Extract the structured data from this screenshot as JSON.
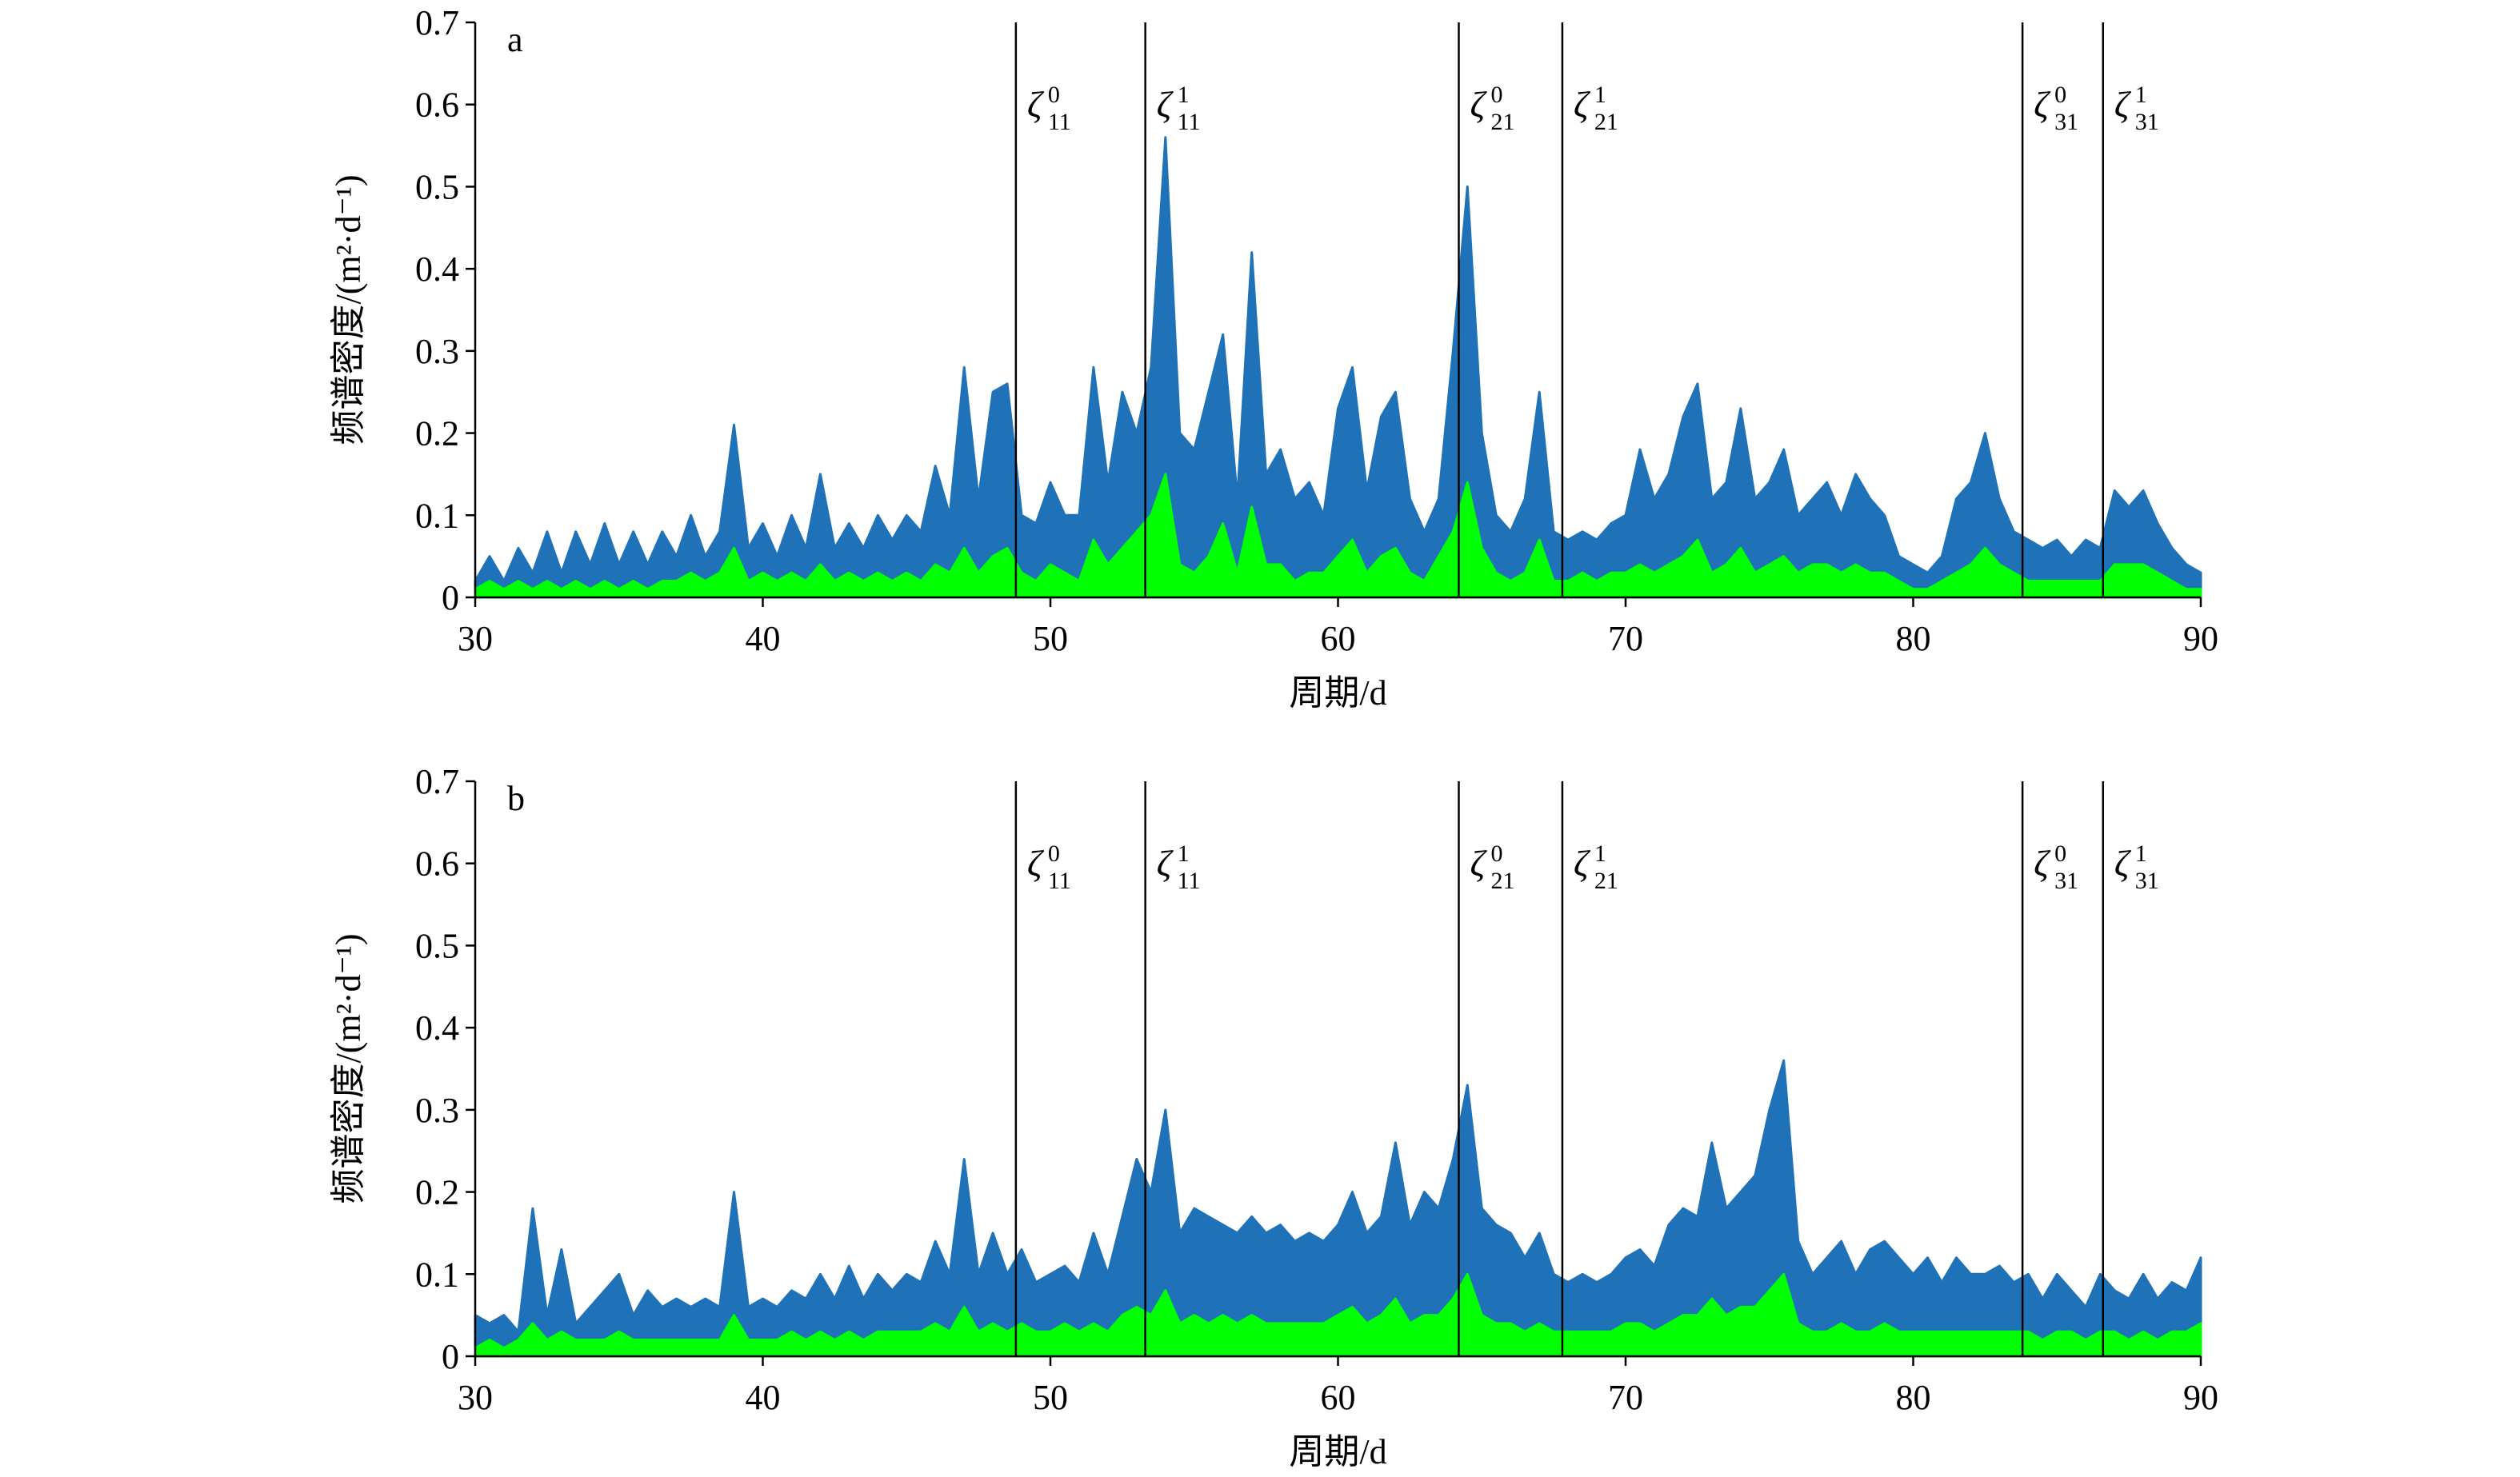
{
  "chart_data": [
    {
      "type": "area",
      "panel_label": "a",
      "xlabel": "周期/d",
      "ylabel": "频谱密度/(m²·d⁻¹)",
      "xlim": [
        30,
        90
      ],
      "xticks": [
        30,
        40,
        50,
        60,
        70,
        80,
        90
      ],
      "ylim": [
        0,
        0.7
      ],
      "yticks": [
        0,
        0.1,
        0.2,
        0.3,
        0.4,
        0.5,
        0.6,
        0.7
      ],
      "x": [
        30,
        30.5,
        31,
        31.5,
        32,
        32.5,
        33,
        33.5,
        34,
        34.5,
        35,
        35.5,
        36,
        36.5,
        37,
        37.5,
        38,
        38.5,
        39,
        39.5,
        40,
        40.5,
        41,
        41.5,
        42,
        42.5,
        43,
        43.5,
        44,
        44.5,
        45,
        45.5,
        46,
        46.5,
        47,
        47.5,
        48,
        48.5,
        49,
        49.5,
        50,
        50.5,
        51,
        51.5,
        52,
        52.5,
        53,
        53.5,
        54,
        54.5,
        55,
        55.5,
        56,
        56.5,
        57,
        57.5,
        58,
        58.5,
        59,
        59.5,
        60,
        60.5,
        61,
        61.5,
        62,
        62.5,
        63,
        63.5,
        64,
        64.5,
        65,
        65.5,
        66,
        66.5,
        67,
        67.5,
        68,
        68.5,
        69,
        69.5,
        70,
        70.5,
        71,
        71.5,
        72,
        72.5,
        73,
        73.5,
        74,
        74.5,
        75,
        75.5,
        76,
        76.5,
        77,
        77.5,
        78,
        78.5,
        79,
        79.5,
        80,
        80.5,
        81,
        81.5,
        82,
        82.5,
        83,
        83.5,
        84,
        84.5,
        85,
        85.5,
        86,
        86.5,
        87,
        87.5,
        88,
        88.5,
        89,
        89.5,
        90
      ],
      "series": [
        {
          "color": "#1f72b8",
          "values": [
            0.02,
            0.05,
            0.02,
            0.06,
            0.03,
            0.08,
            0.03,
            0.08,
            0.04,
            0.09,
            0.04,
            0.08,
            0.04,
            0.08,
            0.05,
            0.1,
            0.05,
            0.08,
            0.21,
            0.06,
            0.09,
            0.05,
            0.1,
            0.06,
            0.15,
            0.06,
            0.09,
            0.06,
            0.1,
            0.07,
            0.1,
            0.08,
            0.16,
            0.1,
            0.28,
            0.12,
            0.25,
            0.26,
            0.1,
            0.09,
            0.14,
            0.1,
            0.1,
            0.28,
            0.14,
            0.25,
            0.2,
            0.28,
            0.56,
            0.2,
            0.18,
            0.25,
            0.32,
            0.12,
            0.42,
            0.15,
            0.18,
            0.12,
            0.14,
            0.1,
            0.23,
            0.28,
            0.13,
            0.22,
            0.25,
            0.12,
            0.08,
            0.12,
            0.3,
            0.5,
            0.2,
            0.1,
            0.08,
            0.12,
            0.25,
            0.08,
            0.07,
            0.08,
            0.07,
            0.09,
            0.1,
            0.18,
            0.12,
            0.15,
            0.22,
            0.26,
            0.12,
            0.14,
            0.23,
            0.12,
            0.14,
            0.18,
            0.1,
            0.12,
            0.14,
            0.1,
            0.15,
            0.12,
            0.1,
            0.05,
            0.04,
            0.03,
            0.05,
            0.12,
            0.14,
            0.2,
            0.12,
            0.08,
            0.07,
            0.06,
            0.07,
            0.05,
            0.07,
            0.06,
            0.13,
            0.11,
            0.13,
            0.09,
            0.06,
            0.04,
            0.03
          ]
        },
        {
          "color": "#00ff00",
          "values": [
            0.01,
            0.02,
            0.01,
            0.02,
            0.01,
            0.02,
            0.01,
            0.02,
            0.01,
            0.02,
            0.01,
            0.02,
            0.01,
            0.02,
            0.02,
            0.03,
            0.02,
            0.03,
            0.06,
            0.02,
            0.03,
            0.02,
            0.03,
            0.02,
            0.04,
            0.02,
            0.03,
            0.02,
            0.03,
            0.02,
            0.03,
            0.02,
            0.04,
            0.03,
            0.06,
            0.03,
            0.05,
            0.06,
            0.03,
            0.02,
            0.04,
            0.03,
            0.02,
            0.07,
            0.04,
            0.06,
            0.08,
            0.1,
            0.15,
            0.04,
            0.03,
            0.05,
            0.09,
            0.03,
            0.11,
            0.04,
            0.04,
            0.02,
            0.03,
            0.03,
            0.05,
            0.07,
            0.03,
            0.05,
            0.06,
            0.03,
            0.02,
            0.05,
            0.08,
            0.14,
            0.06,
            0.03,
            0.02,
            0.03,
            0.07,
            0.02,
            0.02,
            0.03,
            0.02,
            0.03,
            0.03,
            0.04,
            0.03,
            0.04,
            0.05,
            0.07,
            0.03,
            0.04,
            0.06,
            0.03,
            0.04,
            0.05,
            0.03,
            0.04,
            0.04,
            0.03,
            0.04,
            0.03,
            0.03,
            0.02,
            0.01,
            0.01,
            0.02,
            0.03,
            0.04,
            0.06,
            0.04,
            0.03,
            0.02,
            0.02,
            0.02,
            0.02,
            0.02,
            0.02,
            0.04,
            0.04,
            0.04,
            0.03,
            0.02,
            0.01,
            0.01
          ]
        }
      ],
      "annotations": [
        {
          "x": 48.8,
          "base": "ζ",
          "sup": "0",
          "sub": "11"
        },
        {
          "x": 53.3,
          "base": "ζ",
          "sup": "1",
          "sub": "11"
        },
        {
          "x": 64.2,
          "base": "ζ",
          "sup": "0",
          "sub": "21"
        },
        {
          "x": 67.8,
          "base": "ζ",
          "sup": "1",
          "sub": "21"
        },
        {
          "x": 83.8,
          "base": "ζ",
          "sup": "0",
          "sub": "31"
        },
        {
          "x": 86.6,
          "base": "ζ",
          "sup": "1",
          "sub": "31"
        }
      ]
    },
    {
      "type": "area",
      "panel_label": "b",
      "xlabel": "周期/d",
      "ylabel": "频谱密度/(m²·d⁻¹)",
      "xlim": [
        30,
        90
      ],
      "xticks": [
        30,
        40,
        50,
        60,
        70,
        80,
        90
      ],
      "ylim": [
        0,
        0.7
      ],
      "yticks": [
        0,
        0.1,
        0.2,
        0.3,
        0.4,
        0.5,
        0.6,
        0.7
      ],
      "x": [
        30,
        30.5,
        31,
        31.5,
        32,
        32.5,
        33,
        33.5,
        34,
        34.5,
        35,
        35.5,
        36,
        36.5,
        37,
        37.5,
        38,
        38.5,
        39,
        39.5,
        40,
        40.5,
        41,
        41.5,
        42,
        42.5,
        43,
        43.5,
        44,
        44.5,
        45,
        45.5,
        46,
        46.5,
        47,
        47.5,
        48,
        48.5,
        49,
        49.5,
        50,
        50.5,
        51,
        51.5,
        52,
        52.5,
        53,
        53.5,
        54,
        54.5,
        55,
        55.5,
        56,
        56.5,
        57,
        57.5,
        58,
        58.5,
        59,
        59.5,
        60,
        60.5,
        61,
        61.5,
        62,
        62.5,
        63,
        63.5,
        64,
        64.5,
        65,
        65.5,
        66,
        66.5,
        67,
        67.5,
        68,
        68.5,
        69,
        69.5,
        70,
        70.5,
        71,
        71.5,
        72,
        72.5,
        73,
        73.5,
        74,
        74.5,
        75,
        75.5,
        76,
        76.5,
        77,
        77.5,
        78,
        78.5,
        79,
        79.5,
        80,
        80.5,
        81,
        81.5,
        82,
        82.5,
        83,
        83.5,
        84,
        84.5,
        85,
        85.5,
        86,
        86.5,
        87,
        87.5,
        88,
        88.5,
        89,
        89.5,
        90
      ],
      "series": [
        {
          "color": "#1f72b8",
          "values": [
            0.05,
            0.04,
            0.05,
            0.03,
            0.18,
            0.05,
            0.13,
            0.04,
            0.06,
            0.08,
            0.1,
            0.05,
            0.08,
            0.06,
            0.07,
            0.06,
            0.07,
            0.06,
            0.2,
            0.06,
            0.07,
            0.06,
            0.08,
            0.07,
            0.1,
            0.07,
            0.11,
            0.07,
            0.1,
            0.08,
            0.1,
            0.09,
            0.14,
            0.1,
            0.24,
            0.1,
            0.15,
            0.1,
            0.13,
            0.09,
            0.1,
            0.11,
            0.09,
            0.15,
            0.1,
            0.17,
            0.24,
            0.2,
            0.3,
            0.15,
            0.18,
            0.17,
            0.16,
            0.15,
            0.17,
            0.15,
            0.16,
            0.14,
            0.15,
            0.14,
            0.16,
            0.2,
            0.15,
            0.17,
            0.26,
            0.16,
            0.2,
            0.18,
            0.24,
            0.33,
            0.18,
            0.16,
            0.15,
            0.12,
            0.15,
            0.1,
            0.09,
            0.1,
            0.09,
            0.1,
            0.12,
            0.13,
            0.11,
            0.16,
            0.18,
            0.17,
            0.26,
            0.18,
            0.2,
            0.22,
            0.3,
            0.36,
            0.14,
            0.1,
            0.12,
            0.14,
            0.1,
            0.13,
            0.14,
            0.12,
            0.1,
            0.12,
            0.09,
            0.12,
            0.1,
            0.1,
            0.11,
            0.09,
            0.1,
            0.07,
            0.1,
            0.08,
            0.06,
            0.1,
            0.08,
            0.07,
            0.1,
            0.07,
            0.09,
            0.08,
            0.12
          ]
        },
        {
          "color": "#00ff00",
          "values": [
            0.01,
            0.02,
            0.01,
            0.02,
            0.04,
            0.02,
            0.03,
            0.02,
            0.02,
            0.02,
            0.03,
            0.02,
            0.02,
            0.02,
            0.02,
            0.02,
            0.02,
            0.02,
            0.05,
            0.02,
            0.02,
            0.02,
            0.03,
            0.02,
            0.03,
            0.02,
            0.03,
            0.02,
            0.03,
            0.03,
            0.03,
            0.03,
            0.04,
            0.03,
            0.06,
            0.03,
            0.04,
            0.03,
            0.04,
            0.03,
            0.03,
            0.04,
            0.03,
            0.04,
            0.03,
            0.05,
            0.06,
            0.05,
            0.08,
            0.04,
            0.05,
            0.04,
            0.05,
            0.04,
            0.05,
            0.04,
            0.04,
            0.04,
            0.04,
            0.04,
            0.05,
            0.06,
            0.04,
            0.05,
            0.07,
            0.04,
            0.05,
            0.05,
            0.07,
            0.1,
            0.05,
            0.04,
            0.04,
            0.03,
            0.04,
            0.03,
            0.03,
            0.03,
            0.03,
            0.03,
            0.04,
            0.04,
            0.03,
            0.04,
            0.05,
            0.05,
            0.07,
            0.05,
            0.06,
            0.06,
            0.08,
            0.1,
            0.04,
            0.03,
            0.03,
            0.04,
            0.03,
            0.03,
            0.04,
            0.03,
            0.03,
            0.03,
            0.03,
            0.03,
            0.03,
            0.03,
            0.03,
            0.03,
            0.03,
            0.02,
            0.03,
            0.03,
            0.02,
            0.03,
            0.03,
            0.02,
            0.03,
            0.02,
            0.03,
            0.03,
            0.04
          ]
        }
      ],
      "annotations": [
        {
          "x": 48.8,
          "base": "ζ",
          "sup": "0",
          "sub": "11"
        },
        {
          "x": 53.3,
          "base": "ζ",
          "sup": "1",
          "sub": "11"
        },
        {
          "x": 64.2,
          "base": "ζ",
          "sup": "0",
          "sub": "21"
        },
        {
          "x": 67.8,
          "base": "ζ",
          "sup": "1",
          "sub": "21"
        },
        {
          "x": 83.8,
          "base": "ζ",
          "sup": "0",
          "sub": "31"
        },
        {
          "x": 86.6,
          "base": "ζ",
          "sup": "1",
          "sub": "31"
        }
      ]
    }
  ]
}
